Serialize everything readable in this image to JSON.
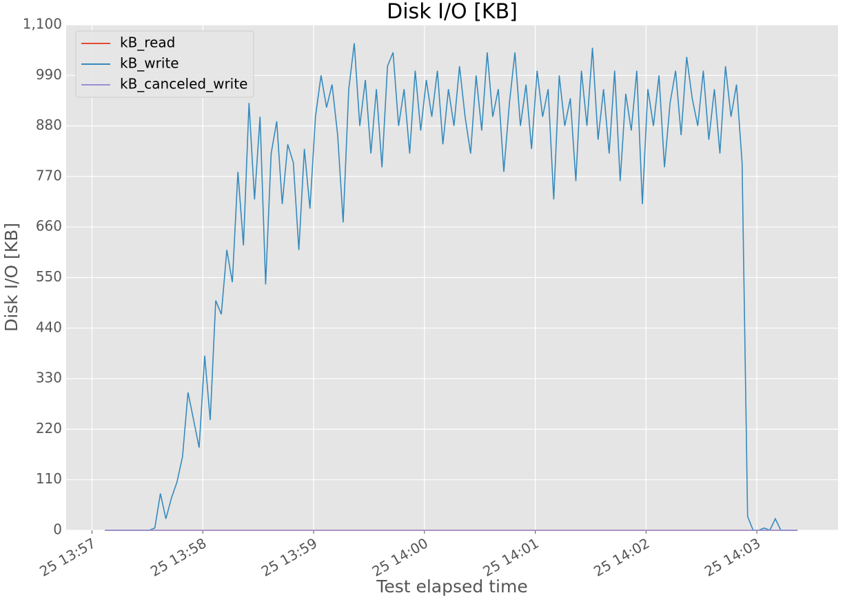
{
  "chart_data": {
    "type": "line",
    "title": "Disk I/O [KB]",
    "x_label": "Test elapsed time",
    "y_label": "Disk I/O [KB]",
    "xlim": [
      -14,
      404
    ],
    "ylim": [
      0,
      1100
    ],
    "xticks": [
      {
        "value": 0,
        "label": "25 13:57"
      },
      {
        "value": 60,
        "label": "25 13:58"
      },
      {
        "value": 120,
        "label": "25 13:59"
      },
      {
        "value": 180,
        "label": "25 14:00"
      },
      {
        "value": 240,
        "label": "25 14:01"
      },
      {
        "value": 300,
        "label": "25 14:02"
      },
      {
        "value": 360,
        "label": "25 14:03"
      }
    ],
    "yticks": [
      0,
      110,
      220,
      330,
      440,
      550,
      660,
      770,
      880,
      990,
      {
        "value": 1100,
        "label": "1,100"
      }
    ],
    "grid": true,
    "legend": "upper left",
    "x": [
      7,
      10,
      13,
      16,
      19,
      22,
      25,
      28,
      31,
      34,
      37,
      40,
      43,
      46,
      49,
      52,
      55,
      58,
      61,
      64,
      67,
      70,
      73,
      76,
      79,
      82,
      85,
      88,
      91,
      94,
      97,
      100,
      103,
      106,
      109,
      112,
      115,
      118,
      121,
      124,
      127,
      130,
      133,
      136,
      139,
      142,
      145,
      148,
      151,
      154,
      157,
      160,
      163,
      166,
      169,
      172,
      175,
      178,
      181,
      184,
      187,
      190,
      193,
      196,
      199,
      202,
      205,
      208,
      211,
      214,
      217,
      220,
      223,
      226,
      229,
      232,
      235,
      238,
      241,
      244,
      247,
      250,
      253,
      256,
      259,
      262,
      265,
      268,
      271,
      274,
      277,
      280,
      283,
      286,
      289,
      292,
      295,
      298,
      301,
      304,
      307,
      310,
      313,
      316,
      319,
      322,
      325,
      328,
      331,
      334,
      337,
      340,
      343,
      346,
      349,
      352,
      355,
      358,
      361,
      364,
      367,
      370,
      373,
      376,
      379,
      382
    ],
    "series": [
      {
        "name": "kB_read",
        "color": "#E24A33",
        "values": [
          0,
          0,
          0,
          0,
          0,
          0,
          0,
          0,
          0,
          0,
          0,
          0,
          0,
          0,
          0,
          0,
          0,
          0,
          0,
          0,
          0,
          0,
          0,
          0,
          0,
          0,
          0,
          0,
          0,
          0,
          0,
          0,
          0,
          0,
          0,
          0,
          0,
          0,
          0,
          0,
          0,
          0,
          0,
          0,
          0,
          0,
          0,
          0,
          0,
          0,
          0,
          0,
          0,
          0,
          0,
          0,
          0,
          0,
          0,
          0,
          0,
          0,
          0,
          0,
          0,
          0,
          0,
          0,
          0,
          0,
          0,
          0,
          0,
          0,
          0,
          0,
          0,
          0,
          0,
          0,
          0,
          0,
          0,
          0,
          0,
          0,
          0,
          0,
          0,
          0,
          0,
          0,
          0,
          0,
          0,
          0,
          0,
          0,
          0,
          0,
          0,
          0,
          0,
          0,
          0,
          0,
          0,
          0,
          0,
          0,
          0,
          0,
          0,
          0,
          0,
          0,
          0,
          0,
          0,
          0,
          0,
          0,
          0,
          0,
          0,
          0
        ]
      },
      {
        "name": "kB_write",
        "color": "#348ABD",
        "values": [
          0,
          0,
          0,
          0,
          0,
          0,
          0,
          0,
          0,
          5,
          80,
          25,
          70,
          105,
          160,
          300,
          240,
          180,
          380,
          240,
          500,
          470,
          610,
          540,
          780,
          620,
          930,
          720,
          900,
          535,
          820,
          890,
          710,
          840,
          800,
          610,
          830,
          700,
          900,
          990,
          920,
          970,
          860,
          670,
          960,
          1060,
          880,
          980,
          820,
          960,
          790,
          1010,
          1040,
          880,
          960,
          820,
          1000,
          870,
          980,
          900,
          1000,
          840,
          960,
          880,
          1010,
          900,
          820,
          990,
          870,
          1040,
          900,
          960,
          780,
          930,
          1040,
          880,
          970,
          830,
          1000,
          900,
          960,
          720,
          990,
          880,
          940,
          760,
          1000,
          880,
          1050,
          850,
          960,
          820,
          1000,
          760,
          950,
          870,
          1000,
          710,
          960,
          880,
          990,
          790,
          930,
          1000,
          860,
          1030,
          940,
          880,
          1000,
          850,
          960,
          820,
          1010,
          900,
          970,
          800,
          30,
          0,
          0,
          5,
          0,
          25,
          0,
          0,
          0,
          0
        ]
      },
      {
        "name": "kB_canceled_write",
        "color": "#988ED5",
        "values": [
          0,
          0,
          0,
          0,
          0,
          0,
          0,
          0,
          0,
          0,
          0,
          0,
          0,
          0,
          0,
          0,
          0,
          0,
          0,
          0,
          0,
          0,
          0,
          0,
          0,
          0,
          0,
          0,
          0,
          0,
          0,
          0,
          0,
          0,
          0,
          0,
          0,
          0,
          0,
          0,
          0,
          0,
          0,
          0,
          0,
          0,
          0,
          0,
          0,
          0,
          0,
          0,
          0,
          0,
          0,
          0,
          0,
          0,
          0,
          0,
          0,
          0,
          0,
          0,
          0,
          0,
          0,
          0,
          0,
          0,
          0,
          0,
          0,
          0,
          0,
          0,
          0,
          0,
          0,
          0,
          0,
          0,
          0,
          0,
          0,
          0,
          0,
          0,
          0,
          0,
          0,
          0,
          0,
          0,
          0,
          0,
          0,
          0,
          0,
          0,
          0,
          0,
          0,
          0,
          0,
          0,
          0,
          0,
          0,
          0,
          0,
          0,
          0,
          0,
          0,
          0,
          0,
          0,
          0,
          0,
          0,
          0,
          0,
          0,
          0,
          0
        ]
      }
    ]
  }
}
